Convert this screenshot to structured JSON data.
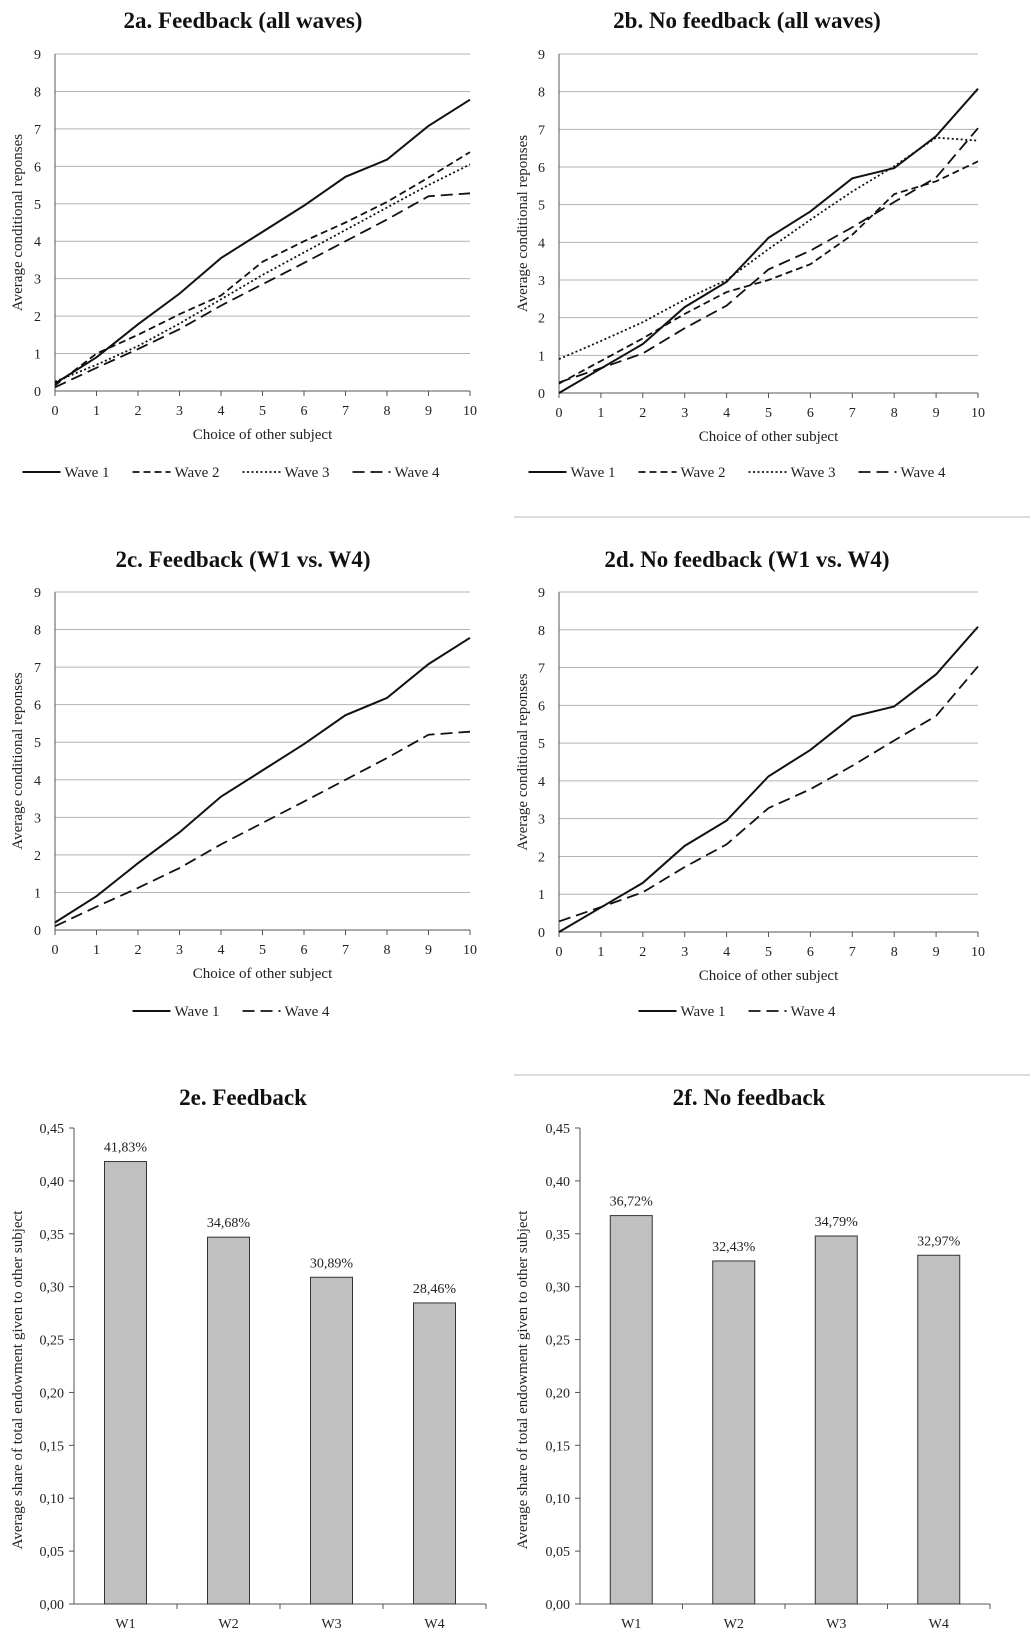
{
  "chart_data": [
    {
      "id": "2a",
      "type": "line",
      "title": "2a. Feedback (all waves)",
      "xlabel": "Choice of other subject",
      "ylabel": "Average conditional reponses",
      "x": [
        0,
        1,
        2,
        3,
        4,
        5,
        6,
        7,
        8,
        9,
        10
      ],
      "xlim": [
        0,
        10
      ],
      "ylim": [
        0,
        9
      ],
      "yticks": [
        "0",
        "1",
        "2",
        "3",
        "4",
        "5",
        "6",
        "7",
        "8",
        "9"
      ],
      "grid": true,
      "legend": "bottom",
      "series": [
        {
          "name": "Wave 1",
          "style": "solid",
          "values": [
            0.2,
            0.9,
            1.78,
            2.6,
            3.55,
            4.25,
            4.95,
            5.72,
            6.18,
            7.08,
            7.78
          ]
        },
        {
          "name": "Wave 2",
          "style": "dashed-short",
          "values": [
            0.15,
            1.0,
            1.5,
            2.05,
            2.55,
            3.45,
            4.0,
            4.5,
            5.05,
            5.7,
            6.38
          ]
        },
        {
          "name": "Wave 3",
          "style": "dotted",
          "values": [
            0.25,
            0.7,
            1.2,
            1.8,
            2.45,
            3.1,
            3.7,
            4.3,
            4.9,
            5.5,
            6.05
          ]
        },
        {
          "name": "Wave 4",
          "style": "dashed-long",
          "values": [
            0.1,
            0.62,
            1.12,
            1.65,
            2.28,
            2.85,
            3.42,
            4.0,
            4.58,
            5.2,
            5.28
          ]
        }
      ]
    },
    {
      "id": "2b",
      "type": "line",
      "title": "2b. No feedback (all waves)",
      "xlabel": "Choice of other subject",
      "ylabel": "Average conditional reponses",
      "x": [
        0,
        1,
        2,
        3,
        4,
        5,
        6,
        7,
        8,
        9,
        10
      ],
      "xlim": [
        0,
        10
      ],
      "ylim": [
        0,
        9
      ],
      "yticks": [
        "0",
        "1",
        "2",
        "3",
        "4",
        "5",
        "6",
        "7",
        "8",
        "9"
      ],
      "grid": true,
      "legend": "bottom",
      "series": [
        {
          "name": "Wave 1",
          "style": "solid",
          "values": [
            0.0,
            0.65,
            1.3,
            2.28,
            2.95,
            4.12,
            4.82,
            5.7,
            5.97,
            6.82,
            8.08
          ]
        },
        {
          "name": "Wave 2",
          "style": "dashed-short",
          "values": [
            0.25,
            0.85,
            1.45,
            2.1,
            2.68,
            3.0,
            3.42,
            4.2,
            5.28,
            5.62,
            6.15
          ]
        },
        {
          "name": "Wave 3",
          "style": "dotted",
          "values": [
            0.9,
            1.38,
            1.88,
            2.48,
            3.0,
            3.82,
            4.6,
            5.35,
            6.02,
            6.78,
            6.7
          ]
        },
        {
          "name": "Wave 4",
          "style": "dashed-long",
          "values": [
            0.28,
            0.66,
            1.05,
            1.72,
            2.32,
            3.28,
            3.78,
            4.4,
            5.07,
            5.72,
            7.03
          ]
        }
      ]
    },
    {
      "id": "2c",
      "type": "line",
      "title": "2c. Feedback (W1 vs. W4)",
      "xlabel": "Choice of other subject",
      "ylabel": "Average conditional reponses",
      "x": [
        0,
        1,
        2,
        3,
        4,
        5,
        6,
        7,
        8,
        9,
        10
      ],
      "xlim": [
        0,
        10
      ],
      "ylim": [
        0,
        9
      ],
      "yticks": [
        "0",
        "1",
        "2",
        "3",
        "4",
        "5",
        "6",
        "7",
        "8",
        "9"
      ],
      "grid": true,
      "legend": "bottom",
      "series": [
        {
          "name": "Wave 1",
          "style": "solid",
          "values": [
            0.2,
            0.9,
            1.78,
            2.6,
            3.55,
            4.25,
            4.95,
            5.72,
            6.18,
            7.08,
            7.78
          ]
        },
        {
          "name": "Wave 4",
          "style": "dashed-long",
          "values": [
            0.1,
            0.62,
            1.12,
            1.65,
            2.28,
            2.85,
            3.42,
            4.0,
            4.58,
            5.2,
            5.28
          ]
        }
      ]
    },
    {
      "id": "2d",
      "type": "line",
      "title": "2d. No feedback (W1 vs. W4)",
      "xlabel": "Choice of other subject",
      "ylabel": "Average conditional reponses",
      "x": [
        0,
        1,
        2,
        3,
        4,
        5,
        6,
        7,
        8,
        9,
        10
      ],
      "xlim": [
        0,
        10
      ],
      "ylim": [
        0,
        9
      ],
      "yticks": [
        "0",
        "1",
        "2",
        "3",
        "4",
        "5",
        "6",
        "7",
        "8",
        "9"
      ],
      "grid": true,
      "legend": "bottom",
      "series": [
        {
          "name": "Wave 1",
          "style": "solid",
          "values": [
            0.0,
            0.65,
            1.3,
            2.28,
            2.95,
            4.12,
            4.82,
            5.7,
            5.97,
            6.82,
            8.08
          ]
        },
        {
          "name": "Wave 4",
          "style": "dashed-long",
          "values": [
            0.28,
            0.66,
            1.05,
            1.72,
            2.32,
            3.28,
            3.78,
            4.4,
            5.07,
            5.72,
            7.03
          ]
        }
      ]
    },
    {
      "id": "2e",
      "type": "bar",
      "title": "2e. Feedback",
      "xlabel": "",
      "ylabel": "Average share of total endowment given to other subject",
      "categories": [
        "W1",
        "W2",
        "W3",
        "W4"
      ],
      "values": [
        0.4183,
        0.3468,
        0.3089,
        0.2846
      ],
      "labels": [
        "41,83%",
        "34,68%",
        "30,89%",
        "28,46%"
      ],
      "ylim": [
        0,
        0.45
      ],
      "yticks": [
        "0,00",
        "0,05",
        "0,10",
        "0,15",
        "0,20",
        "0,25",
        "0,30",
        "0,35",
        "0,40",
        "0,45"
      ],
      "grid": false,
      "bar_color": "#c0c0c0"
    },
    {
      "id": "2f",
      "type": "bar",
      "title": "2f. No feedback",
      "xlabel": "",
      "ylabel": "Average share of total endowment given to other subject",
      "categories": [
        "W1",
        "W2",
        "W3",
        "W4"
      ],
      "values": [
        0.3672,
        0.3243,
        0.3479,
        0.3297
      ],
      "labels": [
        "36,72%",
        "32,43%",
        "34,79%",
        "32,97%"
      ],
      "ylim": [
        0,
        0.45
      ],
      "yticks": [
        "0,00",
        "0,05",
        "0,10",
        "0,15",
        "0,20",
        "0,25",
        "0,30",
        "0,35",
        "0,40",
        "0,45"
      ],
      "grid": false,
      "bar_color": "#c0c0c0"
    }
  ]
}
